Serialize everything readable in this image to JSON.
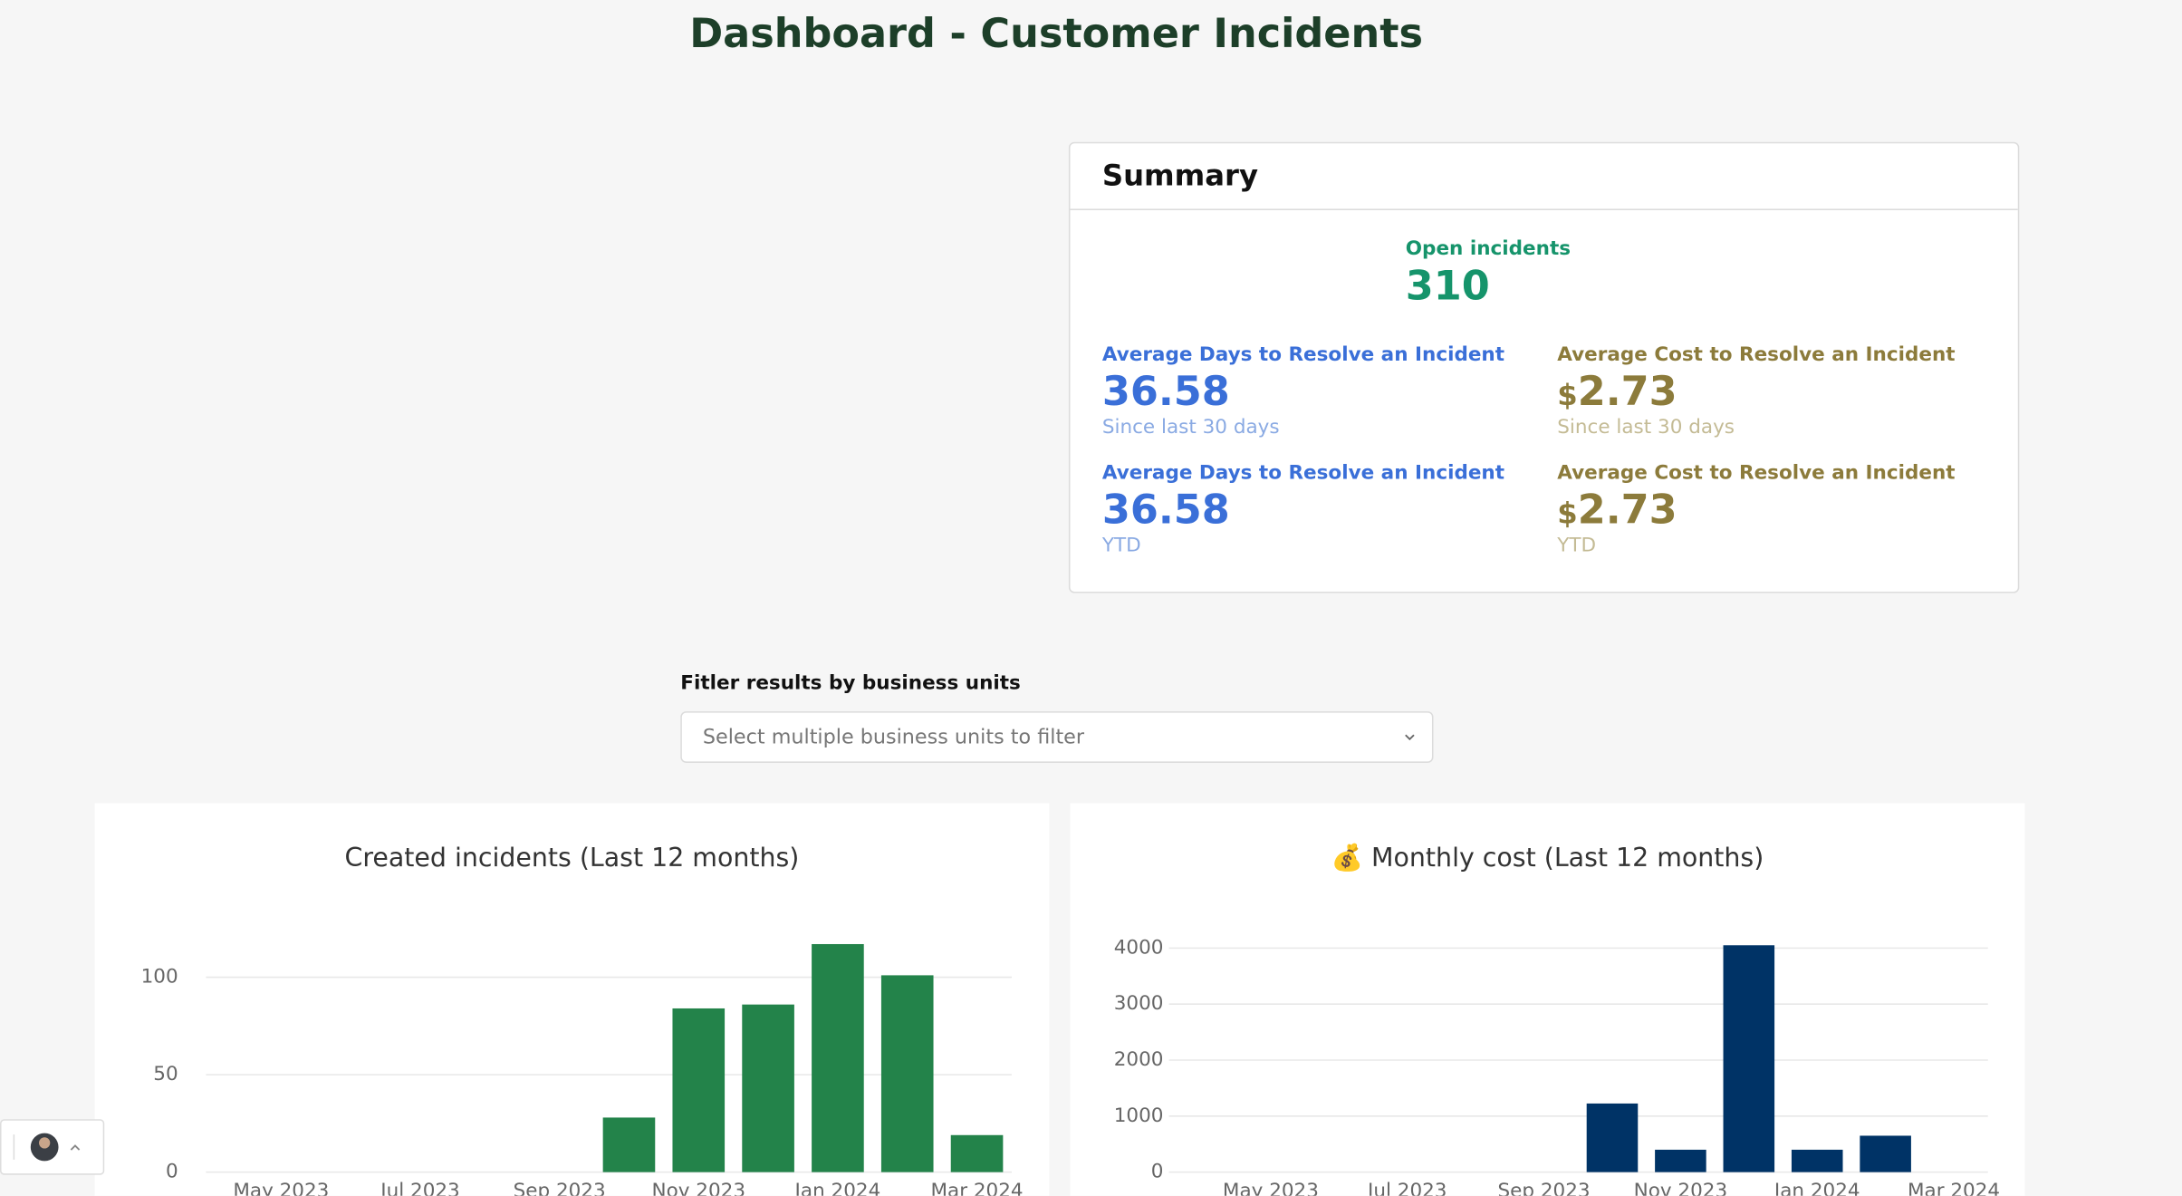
{
  "header": {
    "title": "Dashboard - Customer Incidents"
  },
  "summary": {
    "title": "Summary",
    "open": {
      "label": "Open incidents",
      "value": "310"
    },
    "metrics": [
      {
        "label": "Average Days to Resolve an Incident",
        "value": "36.58",
        "note": "Since last 30 days"
      },
      {
        "label": "Average Cost to Resolve an Incident",
        "currency": "$",
        "value": "2.73",
        "note": "Since last 30 days"
      },
      {
        "label": "Average Days to Resolve an Incident",
        "value": "36.58",
        "note": "YTD"
      },
      {
        "label": "Average Cost to Resolve an Incident",
        "currency": "$",
        "value": "2.73",
        "note": "YTD"
      }
    ]
  },
  "filter": {
    "label": "Fitler results by business units",
    "placeholder": "Select multiple business units to filter"
  },
  "chart_data": [
    {
      "type": "bar",
      "title": "Created incidents (Last 12 months)",
      "categories": [
        null,
        "May 2023",
        null,
        "Jul 2023",
        null,
        "Sep 2023",
        null,
        "Nov 2023",
        null,
        "Jan 2024",
        null,
        "Mar 2024"
      ],
      "values": [
        0,
        0,
        0,
        0,
        0,
        0,
        28,
        84,
        86,
        117,
        101,
        19
      ],
      "color": "#23834a",
      "ylim": [
        0,
        120
      ],
      "yticks": [
        0,
        50,
        100
      ],
      "grid": true
    },
    {
      "type": "bar",
      "title": "💰 Monthly cost (Last 12 months)",
      "categories": [
        null,
        "May 2023",
        null,
        "Jul 2023",
        null,
        "Sep 2023",
        null,
        "Nov 2023",
        null,
        "Jan 2024",
        null,
        "Mar 2024"
      ],
      "values": [
        0,
        0,
        0,
        0,
        0,
        0,
        1225,
        400,
        4050,
        400,
        650,
        0
      ],
      "color": "#003366",
      "ylim": [
        0,
        4200
      ],
      "yticks": [
        0,
        1000,
        2000,
        3000,
        4000
      ],
      "grid": true
    }
  ]
}
